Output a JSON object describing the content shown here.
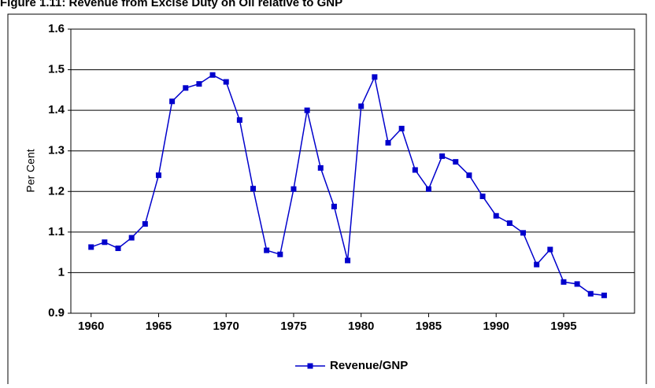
{
  "chart_data": {
    "type": "line",
    "title": "Figure 1.11: Revenue from Excise Duty on Oil relative to GNP",
    "y_label": "Per Cent",
    "x": [
      1960,
      1961,
      1962,
      1963,
      1964,
      1965,
      1966,
      1967,
      1968,
      1969,
      1970,
      1971,
      1972,
      1973,
      1974,
      1975,
      1976,
      1977,
      1978,
      1979,
      1980,
      1981,
      1982,
      1983,
      1984,
      1985,
      1986,
      1987,
      1988,
      1989,
      1990,
      1991,
      1992,
      1993,
      1994,
      1995,
      1996,
      1997,
      1998
    ],
    "series": [
      {
        "name": "Revenue/GNP",
        "color": "#0000cc",
        "values": [
          1.063,
          1.075,
          1.06,
          1.086,
          1.12,
          1.24,
          1.422,
          1.455,
          1.465,
          1.487,
          1.47,
          1.376,
          1.207,
          1.055,
          1.045,
          1.206,
          1.4,
          1.258,
          1.163,
          1.03,
          1.41,
          1.482,
          1.32,
          1.355,
          1.253,
          1.206,
          1.287,
          1.273,
          1.24,
          1.188,
          1.14,
          1.122,
          1.098,
          1.02,
          1.057,
          0.977,
          0.972,
          0.948,
          0.944
        ]
      }
    ],
    "xlim": [
      1958.5,
      2000.25
    ],
    "xticks": [
      1960,
      1965,
      1970,
      1975,
      1980,
      1985,
      1990,
      1995
    ],
    "ylim": [
      0.9,
      1.6
    ],
    "yticks": [
      0.9,
      1,
      1.1,
      1.2,
      1.3,
      1.4,
      1.5,
      1.6
    ],
    "grid": true,
    "legend": "bottom"
  }
}
